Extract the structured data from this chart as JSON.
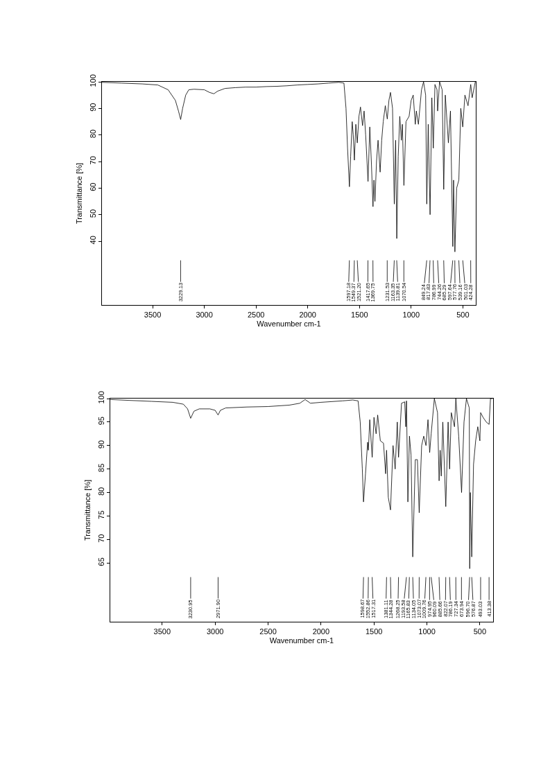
{
  "chart_data": [
    {
      "type": "line",
      "xlabel": "Wavenumber cm-1",
      "ylabel": "Transmittance [%]",
      "color": "#000000",
      "x": [
        3990,
        3800,
        3600,
        3450,
        3350,
        3280,
        3250,
        3229,
        3210,
        3180,
        3150,
        3100,
        3000,
        2950,
        2908,
        2870,
        2800,
        2700,
        2600,
        2500,
        2400,
        2300,
        2200,
        2100,
        2000,
        1900,
        1800,
        1700,
        1650,
        1630,
        1615,
        1597,
        1585,
        1570,
        1560,
        1549,
        1535,
        1521,
        1505,
        1490,
        1470,
        1455,
        1440,
        1417,
        1400,
        1385,
        1369,
        1360,
        1350,
        1335,
        1320,
        1300,
        1285,
        1270,
        1250,
        1231,
        1215,
        1200,
        1180,
        1163,
        1155,
        1150,
        1139,
        1125,
        1110,
        1095,
        1085,
        1070,
        1050,
        1020,
        1000,
        980,
        960,
        950,
        930,
        900,
        880,
        860,
        849,
        835,
        817,
        800,
        786,
        770,
        750,
        744,
        725,
        700,
        685,
        670,
        640,
        620,
        597,
        590,
        577,
        560,
        539,
        520,
        501,
        480,
        450,
        424,
        410,
        380
      ],
      "values": [
        99.8,
        99.5,
        99.2,
        98.8,
        97,
        93,
        89,
        85.8,
        90,
        95,
        97,
        97.2,
        97,
        96,
        95.5,
        96.5,
        97.5,
        97.8,
        98,
        98,
        98.2,
        98.3,
        98.5,
        98.8,
        99,
        99.2,
        99.5,
        99.8,
        99.5,
        90,
        75,
        60.5,
        72,
        85,
        80,
        70.5,
        84,
        77,
        87,
        90.5,
        83.5,
        89,
        80,
        62.5,
        83,
        70,
        53,
        63,
        55,
        70,
        78,
        66,
        78,
        85,
        91,
        86,
        93,
        96,
        90,
        54,
        70,
        78,
        41,
        72,
        87,
        78,
        84,
        61,
        85,
        87,
        93,
        95,
        84,
        89,
        84,
        97,
        100,
        95,
        54,
        84,
        50,
        94,
        75,
        99,
        97,
        89,
        100,
        97,
        59.5,
        95,
        77,
        89,
        38,
        63,
        36,
        60,
        63,
        90,
        83,
        95,
        91,
        99,
        94,
        100
      ],
      "xlim": [
        3990,
        375
      ],
      "ylim": [
        16,
        100
      ],
      "xticks": [
        3500,
        3000,
        2500,
        2000,
        1500,
        1000,
        500
      ],
      "yticks": [
        40,
        50,
        60,
        70,
        80,
        90,
        100
      ],
      "annotations": [
        {
          "text": "3229.13",
          "x": 3229.13
        },
        {
          "text": "1597.18",
          "x": 1597.18
        },
        {
          "text": "1549.37",
          "x": 1549.37
        },
        {
          "text": "1521.20",
          "x": 1521.2
        },
        {
          "text": "1417.65",
          "x": 1417.65
        },
        {
          "text": "1369.75",
          "x": 1369.75
        },
        {
          "text": "1231.53",
          "x": 1231.53
        },
        {
          "text": "1163.35",
          "x": 1163.35
        },
        {
          "text": "1139.81",
          "x": 1139.81
        },
        {
          "text": "1070.54",
          "x": 1070.54
        },
        {
          "text": "849.24",
          "x": 849.24
        },
        {
          "text": "817.83",
          "x": 817.83
        },
        {
          "text": "786.99",
          "x": 786.99
        },
        {
          "text": "744.26",
          "x": 744.26
        },
        {
          "text": "685.29",
          "x": 685.29
        },
        {
          "text": "597.64",
          "x": 597.64
        },
        {
          "text": "577.76",
          "x": 577.76
        },
        {
          "text": "539.16",
          "x": 539.16
        },
        {
          "text": "501.03",
          "x": 501.03
        },
        {
          "text": "424.28",
          "x": 424.28
        }
      ]
    },
    {
      "type": "line",
      "xlabel": "Wavenumber cm-1",
      "ylabel": "Transmittance [%]",
      "color": "#000000",
      "x": [
        3990,
        3800,
        3600,
        3400,
        3300,
        3260,
        3231,
        3200,
        3150,
        3050,
        3000,
        2972,
        2950,
        2900,
        2700,
        2500,
        2300,
        2200,
        2150,
        2100,
        2000,
        1800,
        1700,
        1650,
        1630,
        1610,
        1599,
        1580,
        1560,
        1553,
        1540,
        1517,
        1500,
        1480,
        1465,
        1440,
        1410,
        1390,
        1381,
        1365,
        1344,
        1320,
        1300,
        1280,
        1268,
        1240,
        1210,
        1200,
        1193,
        1180,
        1165,
        1150,
        1134,
        1110,
        1090,
        1073,
        1050,
        1030,
        1009,
        990,
        974,
        960,
        930,
        900,
        885,
        875,
        865,
        850,
        822,
        800,
        786,
        770,
        740,
        727,
        700,
        673,
        650,
        627,
        600,
        596,
        590,
        577,
        560,
        540,
        520,
        500,
        493,
        470,
        440,
        413,
        400,
        380
      ],
      "values": [
        99.8,
        99.6,
        99.4,
        99.2,
        98.8,
        97.8,
        95.8,
        97.3,
        97.8,
        97.8,
        97.5,
        96.5,
        97.5,
        98,
        98.2,
        98.3,
        98.6,
        99,
        99.8,
        99,
        99.2,
        99.5,
        99.7,
        99.5,
        95,
        85,
        78,
        84,
        90.7,
        89,
        95.5,
        87.5,
        96,
        92.5,
        96.5,
        91,
        90.5,
        84,
        89,
        79,
        76.3,
        90,
        85,
        95,
        87.5,
        99,
        99.3,
        94,
        99.5,
        78,
        92,
        88,
        66.3,
        87,
        87,
        75.7,
        90,
        92,
        90,
        95.5,
        88.5,
        92.5,
        100,
        97,
        82.5,
        89,
        83.5,
        95,
        77,
        95,
        85,
        97,
        94,
        100,
        92,
        80,
        95,
        100,
        98,
        63.8,
        80,
        66.3,
        86,
        91,
        94,
        91,
        97,
        96,
        95,
        94.5,
        100,
        100
      ],
      "xlim": [
        3990,
        375
      ],
      "ylim": [
        52.5,
        100
      ],
      "xticks": [
        3500,
        3000,
        2500,
        2000,
        1500,
        1000,
        500
      ],
      "yticks": [
        65,
        70,
        75,
        80,
        85,
        90,
        95,
        100
      ],
      "annotations": [
        {
          "text": "3230.95",
          "x": 3230.95
        },
        {
          "text": "2971.90",
          "x": 2971.9
        },
        {
          "text": "1598.67",
          "x": 1598.67
        },
        {
          "text": "1552.86",
          "x": 1552.86
        },
        {
          "text": "1517.31",
          "x": 1517.31
        },
        {
          "text": "1381.11",
          "x": 1381.11
        },
        {
          "text": "1344.28",
          "x": 1344.28
        },
        {
          "text": "1268.25",
          "x": 1268.25
        },
        {
          "text": "1193.58",
          "x": 1193.58
        },
        {
          "text": "1165.83",
          "x": 1165.83
        },
        {
          "text": "1134.05",
          "x": 1134.05
        },
        {
          "text": "1073.07",
          "x": 1073.07
        },
        {
          "text": "1009.76",
          "x": 1009.76
        },
        {
          "text": "974.95",
          "x": 974.95
        },
        {
          "text": "960.09",
          "x": 960.09
        },
        {
          "text": "885.66",
          "x": 885.66
        },
        {
          "text": "822.07",
          "x": 822.07
        },
        {
          "text": "786.19",
          "x": 786.19
        },
        {
          "text": "727.34",
          "x": 727.34
        },
        {
          "text": "673.94",
          "x": 673.94
        },
        {
          "text": "596.70",
          "x": 596.7
        },
        {
          "text": "576.87",
          "x": 576.87
        },
        {
          "text": "493.03",
          "x": 493.03
        },
        {
          "text": "413.38",
          "x": 413.38
        }
      ]
    }
  ]
}
